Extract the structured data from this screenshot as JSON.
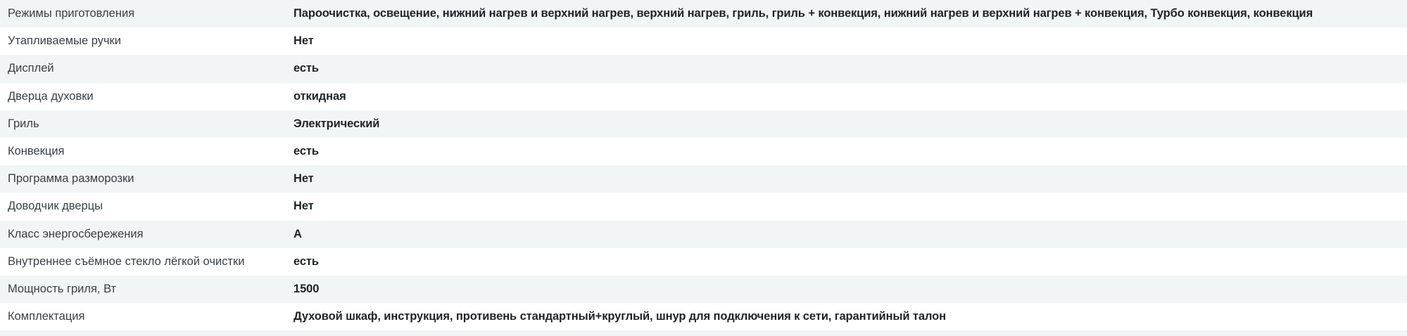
{
  "specs": [
    {
      "label": "Режимы приготовления",
      "value": "Пароочистка, освещение, нижний нагрев и верхний нагрев, верхний нагрев, гриль, гриль + конвекция, нижний нагрев и верхний нагрев + конвекция, Турбо конвекция, конвекция"
    },
    {
      "label": "Утапливаемые ручки",
      "value": "Нет"
    },
    {
      "label": "Дисплей",
      "value": "есть"
    },
    {
      "label": "Дверца духовки",
      "value": "откидная"
    },
    {
      "label": "Гриль",
      "value": "Электрический"
    },
    {
      "label": "Конвекция",
      "value": "есть"
    },
    {
      "label": "Программа разморозки",
      "value": "Нет"
    },
    {
      "label": "Доводчик дверцы",
      "value": "Нет"
    },
    {
      "label": "Класс энергосбережения",
      "value": "A"
    },
    {
      "label": "Внутреннее съёмное стекло лёгкой очистки",
      "value": "есть"
    },
    {
      "label": "Мощность гриля, Вт",
      "value": "1500"
    },
    {
      "label": "Комплектация",
      "value": "Духовой шкаф, инструкция, противень стандартный+круглый, шнур для подключения к сети, гарантийный талон"
    }
  ]
}
